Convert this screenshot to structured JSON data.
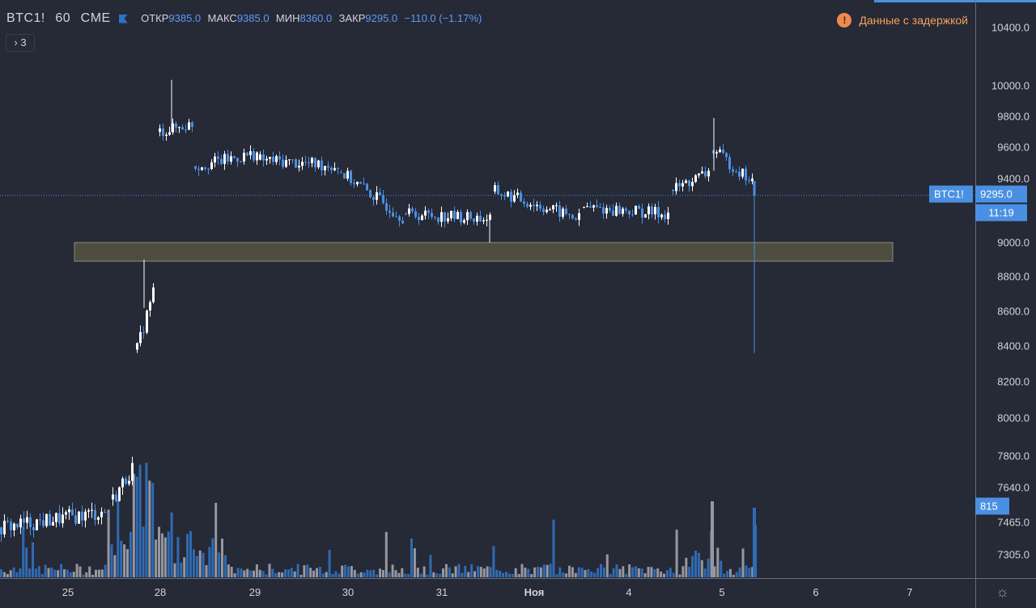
{
  "legend": {
    "symbol": "BTC1!",
    "interval": "60",
    "exchange": "CME",
    "open_label": "ОТКР",
    "open_value": "9385.0",
    "high_label": "МАКС",
    "high_value": "9385.0",
    "low_label": "МИН",
    "low_value": "8360.0",
    "close_label": "ЗАКР",
    "close_value": "9295.0",
    "change": "−110.0 (−1.17%)",
    "collapsed_count": "3"
  },
  "delay_notice": "Данные с задержкой",
  "price_tag": {
    "label": "BTC1!",
    "value": "9295.0",
    "countdown": "11:19"
  },
  "volume_tag": "815",
  "colors": {
    "bg": "#262936",
    "up": "#ffffff",
    "down": "#4a90e2",
    "vol_up": "#9598a1",
    "vol_down": "#2f6bb3",
    "zone": "#4e4d40",
    "warning": "#f0894e"
  },
  "chart_data": {
    "type": "candlestick",
    "y_ticks": [
      "10400.0",
      "10000.0",
      "9800.0",
      "9600.0",
      "9400.0",
      "9000.0",
      "8800.0",
      "8600.0",
      "8400.0",
      "8200.0",
      "8000.0",
      "7800.0",
      "7640.0",
      "7465.0",
      "7305.0"
    ],
    "x_ticks": [
      "25",
      "28",
      "29",
      "30",
      "31",
      "Ноя",
      "4",
      "5",
      "6",
      "7"
    ],
    "price_range": [
      7130,
      10480
    ],
    "last_close": 9295.0,
    "last_open": 9385.0,
    "last_low": 8360.0,
    "zone": {
      "low": 8890,
      "high": 9000
    },
    "segments": [
      {
        "x": [
          0,
          138
        ],
        "y": [
          7440,
          7520
        ]
      },
      {
        "x": [
          138,
          168
        ],
        "y": [
          7580,
          7740
        ]
      },
      {
        "x": [
          168,
          192
        ],
        "y": [
          8380,
          8720
        ]
      },
      {
        "x": [
          196,
          240
        ],
        "y": [
          9700,
          9750
        ]
      },
      {
        "x": [
          240,
          320
        ],
        "y": [
          9480,
          9560
        ]
      },
      {
        "x": [
          320,
          420
        ],
        "y": [
          9520,
          9480
        ]
      },
      {
        "x": [
          420,
          500
        ],
        "y": [
          9440,
          9160
        ]
      },
      {
        "x": [
          500,
          610
        ],
        "y": [
          9180,
          9150
        ]
      },
      {
        "x": [
          610,
          720
        ],
        "y": [
          9320,
          9150
        ]
      },
      {
        "x": [
          720,
          830
        ],
        "y": [
          9220,
          9180
        ]
      },
      {
        "x": [
          830,
          880
        ],
        "y": [
          9330,
          9440
        ]
      },
      {
        "x": [
          880,
          934
        ],
        "y": [
          9580,
          9380
        ]
      }
    ],
    "volume": {
      "max": 1000,
      "last": 815
    }
  }
}
